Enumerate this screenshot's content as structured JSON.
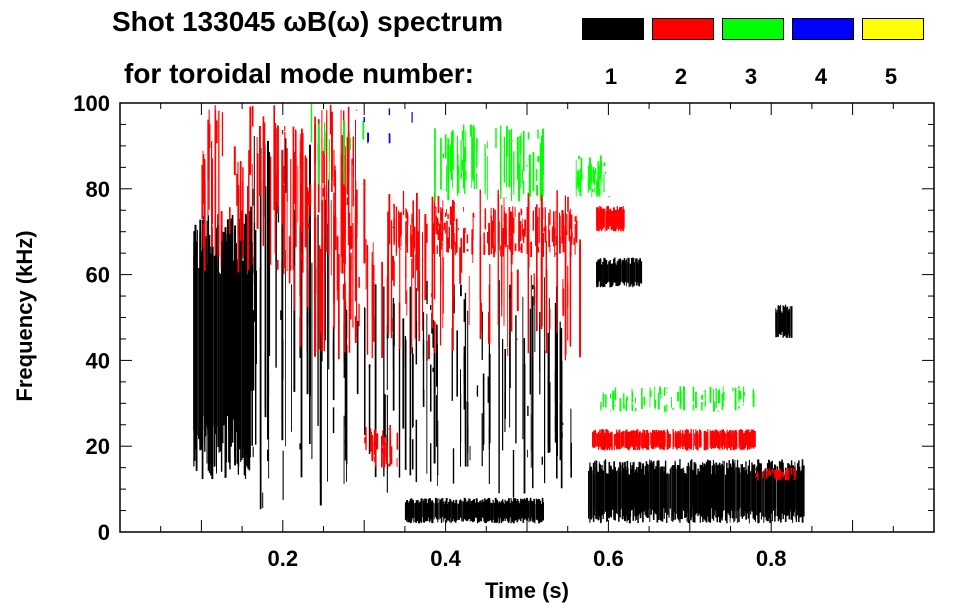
{
  "chart_data": {
    "type": "heatmap",
    "title_line1": "Shot 133045 ωB(ω) spectrum",
    "title_line2": "for toroidal mode number:",
    "xlabel": "Time (s)",
    "ylabel": "Frequency (kHz)",
    "xlim": [
      0.0,
      1.0
    ],
    "ylim": [
      0,
      100
    ],
    "x_ticks": [
      0.2,
      0.4,
      0.6,
      0.8
    ],
    "x_tick_labels": [
      "0.2",
      "0.4",
      "0.6",
      "0.8"
    ],
    "y_ticks": [
      0,
      20,
      40,
      60,
      80,
      100
    ],
    "y_tick_labels": [
      "0",
      "20",
      "40",
      "60",
      "80",
      "100"
    ],
    "legend": [
      {
        "label": "1",
        "color": "#000000"
      },
      {
        "label": "2",
        "color": "#ff0000"
      },
      {
        "label": "3",
        "color": "#00ff00"
      },
      {
        "label": "4",
        "color": "#0000ff"
      },
      {
        "label": "5",
        "color": "#ffff00"
      }
    ],
    "regions": [
      {
        "mode": "1",
        "t": [
          0.09,
          0.16
        ],
        "f": [
          12,
          75
        ],
        "density": 0.85
      },
      {
        "mode": "1",
        "t": [
          0.16,
          0.26
        ],
        "f": [
          5,
          95
        ],
        "density": 0.25
      },
      {
        "mode": "1",
        "t": [
          0.26,
          0.56
        ],
        "f": [
          8,
          60
        ],
        "density": 0.15
      },
      {
        "mode": "1",
        "t": [
          0.35,
          0.52
        ],
        "f": [
          2,
          8
        ],
        "density": 0.95
      },
      {
        "mode": "1",
        "t": [
          0.575,
          0.84
        ],
        "f": [
          2,
          17
        ],
        "density": 0.9
      },
      {
        "mode": "1",
        "t": [
          0.585,
          0.64
        ],
        "f": [
          57,
          64
        ],
        "density": 0.85
      },
      {
        "mode": "1",
        "t": [
          0.805,
          0.825
        ],
        "f": [
          45,
          53
        ],
        "density": 0.8
      },
      {
        "mode": "2",
        "t": [
          0.1,
          0.3
        ],
        "f": [
          60,
          100
        ],
        "density": 0.35
      },
      {
        "mode": "2",
        "t": [
          0.2,
          0.57
        ],
        "f": [
          40,
          80
        ],
        "density": 0.2
      },
      {
        "mode": "2",
        "t": [
          0.33,
          0.56
        ],
        "f": [
          64,
          76
        ],
        "density": 0.45
      },
      {
        "mode": "2",
        "t": [
          0.3,
          0.34
        ],
        "f": [
          15,
          25
        ],
        "density": 0.5
      },
      {
        "mode": "2",
        "t": [
          0.585,
          0.62
        ],
        "f": [
          70,
          76
        ],
        "density": 0.8
      },
      {
        "mode": "2",
        "t": [
          0.58,
          0.78
        ],
        "f": [
          19,
          24
        ],
        "density": 0.75
      },
      {
        "mode": "2",
        "t": [
          0.78,
          0.83
        ],
        "f": [
          12,
          15
        ],
        "density": 0.5
      },
      {
        "mode": "3",
        "t": [
          0.38,
          0.52
        ],
        "f": [
          77,
          95
        ],
        "density": 0.35
      },
      {
        "mode": "3",
        "t": [
          0.56,
          0.6
        ],
        "f": [
          78,
          88
        ],
        "density": 0.55
      },
      {
        "mode": "3",
        "t": [
          0.23,
          0.3
        ],
        "f": [
          80,
          100
        ],
        "density": 0.12
      },
      {
        "mode": "3",
        "t": [
          0.59,
          0.78
        ],
        "f": [
          28,
          34
        ],
        "density": 0.2
      },
      {
        "mode": "4",
        "t": [
          0.28,
          0.36
        ],
        "f": [
          90,
          100
        ],
        "density": 0.05
      }
    ]
  }
}
